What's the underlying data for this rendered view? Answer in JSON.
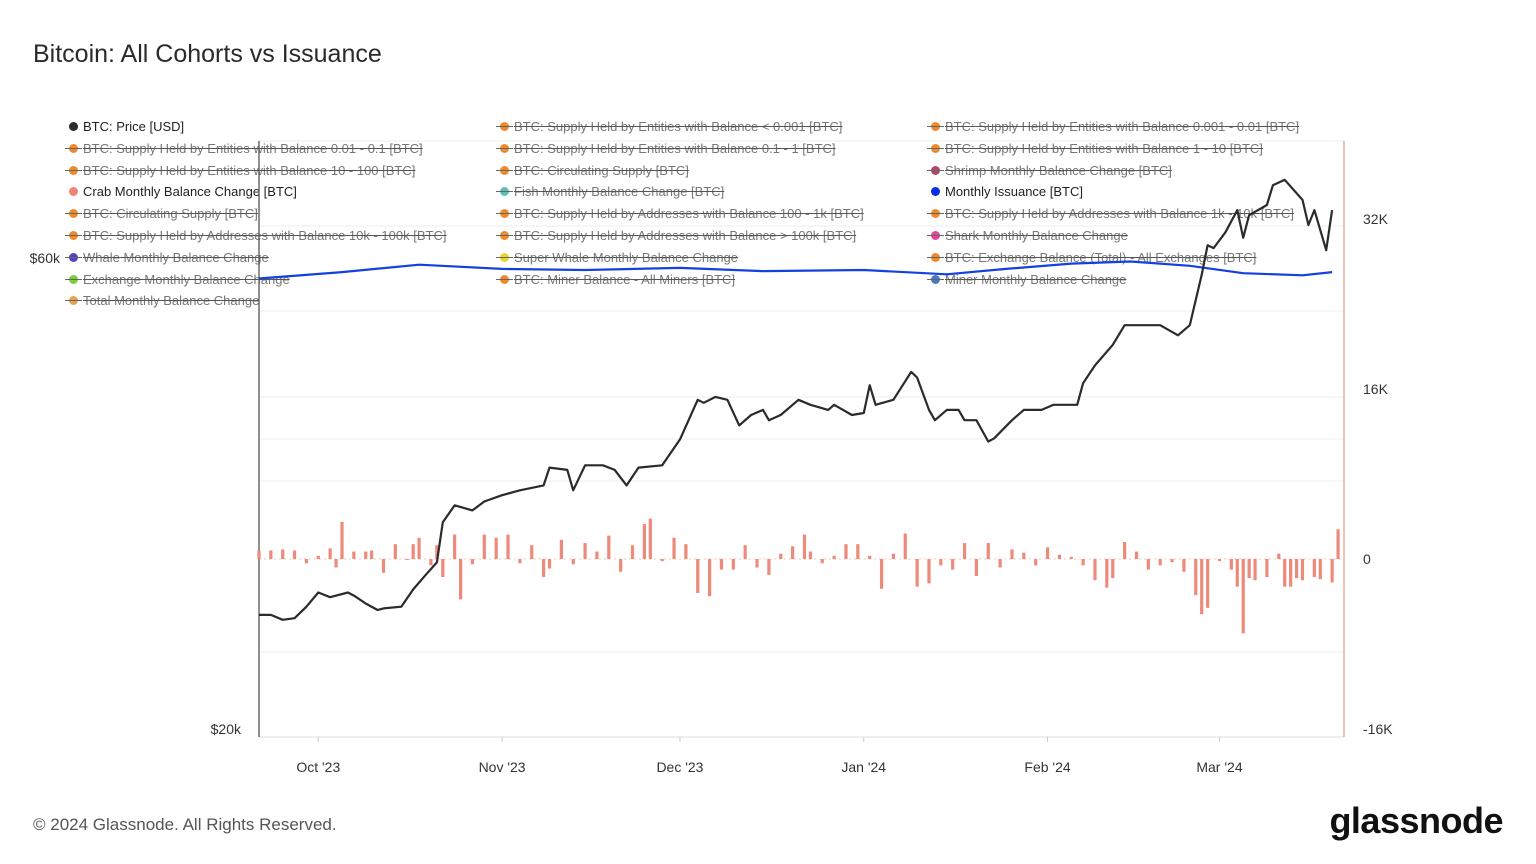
{
  "title": "Bitcoin: All Cohorts vs Issuance",
  "footer": "© 2024 Glassnode. All Rights Reserved.",
  "logo": "glassnode",
  "legend": [
    {
      "label": "BTC: Price [USD]",
      "color": "#2b2b2b",
      "active": true
    },
    {
      "label": "BTC: Supply Held by Entities with Balance < 0.001 [BTC]",
      "color": "#ee8a2c",
      "active": false
    },
    {
      "label": "BTC: Supply Held by Entities with Balance 0.001 - 0.01 [BTC]",
      "color": "#ee8a2c",
      "active": false
    },
    {
      "label": "BTC: Supply Held by Entities with Balance 0.01 - 0.1 [BTC]",
      "color": "#ee8a2c",
      "active": false
    },
    {
      "label": "BTC: Supply Held by Entities with Balance 0.1 - 1 [BTC]",
      "color": "#ee8a2c",
      "active": false
    },
    {
      "label": "BTC: Supply Held by Entities with Balance 1 - 10 [BTC]",
      "color": "#ee8a2c",
      "active": false
    },
    {
      "label": "BTC: Supply Held by Entities with Balance 10 - 100 [BTC]",
      "color": "#ee8a2c",
      "active": false
    },
    {
      "label": "BTC: Circulating Supply [BTC]",
      "color": "#ee8a2c",
      "active": false
    },
    {
      "label": "Shrimp Monthly Balance Change [BTC]",
      "color": "#b0456e",
      "active": false
    },
    {
      "label": "Crab Monthly Balance Change [BTC]",
      "color": "#ee8577",
      "active": true
    },
    {
      "label": "Fish Monthly Balance Change [BTC]",
      "color": "#5fbfb6",
      "active": false
    },
    {
      "label": "Monthly Issuance [BTC]",
      "color": "#0a2ee8",
      "active": true
    },
    {
      "label": "BTC: Circulating Supply [BTC]",
      "color": "#ee8a2c",
      "active": false
    },
    {
      "label": "BTC: Supply Held by Addresses with Balance 100 - 1k [BTC]",
      "color": "#ee8a2c",
      "active": false
    },
    {
      "label": "BTC: Supply Held by Addresses with Balance 1k - 10k [BTC]",
      "color": "#ee8a2c",
      "active": false
    },
    {
      "label": "BTC: Supply Held by Addresses with Balance 10k - 100k [BTC]",
      "color": "#ee8a2c",
      "active": false
    },
    {
      "label": "BTC: Supply Held by Addresses with Balance > 100k [BTC]",
      "color": "#ee8a2c",
      "active": false
    },
    {
      "label": "Shark Monthly Balance Change",
      "color": "#e0459a",
      "active": false
    },
    {
      "label": "Whale Monthly Balance Change",
      "color": "#5a3fc4",
      "active": false
    },
    {
      "label": "Super Whale Monthly Balance Change",
      "color": "#e6d72a",
      "active": false
    },
    {
      "label": "BTC: Exchange Balance (Total) - All Exchanges [BTC]",
      "color": "#ee8a2c",
      "active": false
    },
    {
      "label": "Exchange Monthly Balance Change",
      "color": "#7ccf3a",
      "active": false
    },
    {
      "label": "BTC: Miner Balance - All Miners [BTC]",
      "color": "#ee8a2c",
      "active": false
    },
    {
      "label": "Miner Monthly Balance Change",
      "color": "#4a78c0",
      "active": false
    },
    {
      "label": "Total Monthly Balance Change",
      "color": "#e0a552",
      "active": false
    }
  ],
  "chart_data": {
    "type": "line+bar",
    "title": "Bitcoin: All Cohorts vs Issuance",
    "x_range": [
      "2023-09-21",
      "2024-03-22"
    ],
    "xticks": [
      {
        "date": "2023-10-01",
        "label": "Oct '23"
      },
      {
        "date": "2023-11-01",
        "label": "Nov '23"
      },
      {
        "date": "2023-12-01",
        "label": "Dec '23"
      },
      {
        "date": "2024-01-01",
        "label": "Jan '24"
      },
      {
        "date": "2024-02-01",
        "label": "Feb '24"
      },
      {
        "date": "2024-03-01",
        "label": "Mar '24"
      }
    ],
    "left_axis": {
      "scale": "log",
      "range_usd": [
        20000,
        60000
      ],
      "ticks": [
        {
          "value": 60000,
          "label": "$60k"
        },
        {
          "value": 20000,
          "label": "$20k"
        }
      ]
    },
    "right_axis": {
      "scale": "linear",
      "range_kbtc": [
        -16,
        32
      ],
      "ticks": [
        {
          "value": 32,
          "label": "32K"
        },
        {
          "value": 16,
          "label": "16K"
        },
        {
          "value": 0,
          "label": "0"
        },
        {
          "value": -16,
          "label": "-16K"
        }
      ]
    },
    "grid": true,
    "colors": {
      "price": "#2b2b2b",
      "issuance": "#1440e0",
      "crab": "#ee8a7a",
      "right_axis": "#e8a08c"
    },
    "price_usd_k": [
      [
        "2023-09-21",
        26.1
      ],
      [
        "2023-09-23",
        26.1
      ],
      [
        "2023-09-25",
        25.8
      ],
      [
        "2023-09-27",
        25.9
      ],
      [
        "2023-09-29",
        26.6
      ],
      [
        "2023-10-01",
        27.5
      ],
      [
        "2023-10-03",
        27.2
      ],
      [
        "2023-10-06",
        27.5
      ],
      [
        "2023-10-07",
        27.3
      ],
      [
        "2023-10-09",
        26.8
      ],
      [
        "2023-10-11",
        26.4
      ],
      [
        "2023-10-12",
        26.5
      ],
      [
        "2023-10-15",
        26.6
      ],
      [
        "2023-10-17",
        27.7
      ],
      [
        "2023-10-19",
        28.6
      ],
      [
        "2023-10-21",
        29.5
      ],
      [
        "2023-10-22",
        32.4
      ],
      [
        "2023-10-24",
        33.7
      ],
      [
        "2023-10-27",
        33.3
      ],
      [
        "2023-10-29",
        34.0
      ],
      [
        "2023-11-01",
        34.5
      ],
      [
        "2023-11-04",
        34.9
      ],
      [
        "2023-11-08",
        35.3
      ],
      [
        "2023-11-09",
        36.8
      ],
      [
        "2023-11-12",
        36.6
      ],
      [
        "2023-11-13",
        34.9
      ],
      [
        "2023-11-15",
        37.0
      ],
      [
        "2023-11-18",
        37.0
      ],
      [
        "2023-11-20",
        36.6
      ],
      [
        "2023-11-22",
        35.3
      ],
      [
        "2023-11-24",
        36.8
      ],
      [
        "2023-11-28",
        37.0
      ],
      [
        "2023-12-01",
        39.3
      ],
      [
        "2023-12-04",
        43.1
      ],
      [
        "2023-12-05",
        42.8
      ],
      [
        "2023-12-07",
        43.4
      ],
      [
        "2023-12-09",
        43.1
      ],
      [
        "2023-12-11",
        40.6
      ],
      [
        "2023-12-13",
        41.6
      ],
      [
        "2023-12-15",
        42.1
      ],
      [
        "2023-12-16",
        41.1
      ],
      [
        "2023-12-18",
        41.6
      ],
      [
        "2023-12-21",
        43.1
      ],
      [
        "2023-12-23",
        42.6
      ],
      [
        "2023-12-26",
        42.1
      ],
      [
        "2023-12-27",
        42.6
      ],
      [
        "2023-12-30",
        41.6
      ],
      [
        "2024-01-01",
        41.8
      ],
      [
        "2024-01-02",
        44.6
      ],
      [
        "2024-01-03",
        42.6
      ],
      [
        "2024-01-06",
        43.1
      ],
      [
        "2024-01-09",
        46.0
      ],
      [
        "2024-01-10",
        45.4
      ],
      [
        "2024-01-12",
        42.1
      ],
      [
        "2024-01-13",
        41.1
      ],
      [
        "2024-01-15",
        42.1
      ],
      [
        "2024-01-17",
        42.1
      ],
      [
        "2024-01-18",
        41.1
      ],
      [
        "2024-01-20",
        41.1
      ],
      [
        "2024-01-22",
        39.1
      ],
      [
        "2024-01-23",
        39.4
      ],
      [
        "2024-01-26",
        41.1
      ],
      [
        "2024-01-28",
        42.1
      ],
      [
        "2024-01-31",
        42.1
      ],
      [
        "2024-02-02",
        42.6
      ],
      [
        "2024-02-06",
        42.6
      ],
      [
        "2024-02-07",
        44.8
      ],
      [
        "2024-02-09",
        46.7
      ],
      [
        "2024-02-12",
        49.0
      ],
      [
        "2024-02-14",
        51.3
      ],
      [
        "2024-02-17",
        51.3
      ],
      [
        "2024-02-20",
        51.3
      ],
      [
        "2024-02-23",
        50.1
      ],
      [
        "2024-02-25",
        51.3
      ],
      [
        "2024-02-27",
        57.7
      ],
      [
        "2024-02-28",
        61.8
      ],
      [
        "2024-02-29",
        61.4
      ],
      [
        "2024-03-02",
        63.7
      ],
      [
        "2024-03-04",
        67.1
      ],
      [
        "2024-03-05",
        62.9
      ],
      [
        "2024-03-06",
        66.3
      ],
      [
        "2024-03-09",
        67.9
      ],
      [
        "2024-03-10",
        71.1
      ],
      [
        "2024-03-12",
        72.0
      ],
      [
        "2024-03-15",
        68.7
      ],
      [
        "2024-03-16",
        64.8
      ],
      [
        "2024-03-17",
        67.1
      ],
      [
        "2024-03-19",
        61.1
      ],
      [
        "2024-03-20",
        67.1
      ]
    ],
    "monthly_issuance_kbtc": [
      [
        "2023-09-21",
        26.4
      ],
      [
        "2023-10-05",
        27.0
      ],
      [
        "2023-10-18",
        27.7
      ],
      [
        "2023-11-01",
        27.3
      ],
      [
        "2023-11-15",
        27.2
      ],
      [
        "2023-12-01",
        27.4
      ],
      [
        "2023-12-15",
        27.1
      ],
      [
        "2024-01-01",
        27.2
      ],
      [
        "2024-01-15",
        26.8
      ],
      [
        "2024-01-25",
        27.3
      ],
      [
        "2024-02-05",
        27.8
      ],
      [
        "2024-02-15",
        28.0
      ],
      [
        "2024-02-25",
        27.6
      ],
      [
        "2024-03-05",
        26.9
      ],
      [
        "2024-03-15",
        26.7
      ],
      [
        "2024-03-20",
        27.0
      ]
    ],
    "crab_monthly_balance_change_kbtc": [
      [
        "2023-09-21",
        0.8
      ],
      [
        "2023-09-23",
        0.8
      ],
      [
        "2023-09-25",
        0.9
      ],
      [
        "2023-09-27",
        0.8
      ],
      [
        "2023-09-29",
        -0.4
      ],
      [
        "2023-10-01",
        0.3
      ],
      [
        "2023-10-03",
        1.0
      ],
      [
        "2023-10-04",
        -0.8
      ],
      [
        "2023-10-05",
        3.5
      ],
      [
        "2023-10-07",
        0.7
      ],
      [
        "2023-10-09",
        0.7
      ],
      [
        "2023-10-10",
        0.8
      ],
      [
        "2023-10-12",
        -1.3
      ],
      [
        "2023-10-14",
        1.4
      ],
      [
        "2023-10-16",
        -0.1
      ],
      [
        "2023-10-17",
        1.4
      ],
      [
        "2023-10-18",
        2.0
      ],
      [
        "2023-10-20",
        -0.6
      ],
      [
        "2023-10-21",
        1.3
      ],
      [
        "2023-10-22",
        -1.7
      ],
      [
        "2023-10-24",
        2.3
      ],
      [
        "2023-10-25",
        -3.8
      ],
      [
        "2023-10-27",
        -0.5
      ],
      [
        "2023-10-29",
        2.3
      ],
      [
        "2023-10-31",
        2.0
      ],
      [
        "2023-11-02",
        2.3
      ],
      [
        "2023-11-04",
        -0.4
      ],
      [
        "2023-11-06",
        1.3
      ],
      [
        "2023-11-08",
        -1.7
      ],
      [
        "2023-11-09",
        -0.9
      ],
      [
        "2023-11-11",
        1.8
      ],
      [
        "2023-11-13",
        -0.5
      ],
      [
        "2023-11-15",
        1.5
      ],
      [
        "2023-11-17",
        0.7
      ],
      [
        "2023-11-19",
        2.2
      ],
      [
        "2023-11-21",
        -1.2
      ],
      [
        "2023-11-23",
        1.3
      ],
      [
        "2023-11-25",
        3.3
      ],
      [
        "2023-11-26",
        3.8
      ],
      [
        "2023-11-28",
        -0.2
      ],
      [
        "2023-11-30",
        2.0
      ],
      [
        "2023-12-02",
        1.4
      ],
      [
        "2023-12-04",
        -3.2
      ],
      [
        "2023-12-06",
        -3.5
      ],
      [
        "2023-12-08",
        -1.0
      ],
      [
        "2023-12-10",
        -1.0
      ],
      [
        "2023-12-12",
        1.3
      ],
      [
        "2023-12-14",
        -0.8
      ],
      [
        "2023-12-16",
        -1.5
      ],
      [
        "2023-12-18",
        0.5
      ],
      [
        "2023-12-20",
        1.2
      ],
      [
        "2023-12-22",
        2.3
      ],
      [
        "2023-12-23",
        0.7
      ],
      [
        "2023-12-25",
        -0.4
      ],
      [
        "2023-12-27",
        0.3
      ],
      [
        "2023-12-29",
        1.4
      ],
      [
        "2023-12-31",
        1.4
      ],
      [
        "2024-01-02",
        0.3
      ],
      [
        "2024-01-04",
        -2.8
      ],
      [
        "2024-01-06",
        0.5
      ],
      [
        "2024-01-08",
        2.4
      ],
      [
        "2024-01-10",
        -2.6
      ],
      [
        "2024-01-12",
        -2.3
      ],
      [
        "2024-01-14",
        -0.6
      ],
      [
        "2024-01-16",
        -1.0
      ],
      [
        "2024-01-18",
        1.5
      ],
      [
        "2024-01-20",
        -1.6
      ],
      [
        "2024-01-22",
        1.5
      ],
      [
        "2024-01-24",
        -0.8
      ],
      [
        "2024-01-26",
        0.9
      ],
      [
        "2024-01-28",
        0.6
      ],
      [
        "2024-01-30",
        -0.6
      ],
      [
        "2024-02-01",
        1.1
      ],
      [
        "2024-02-03",
        0.4
      ],
      [
        "2024-02-05",
        0.2
      ],
      [
        "2024-02-07",
        -0.6
      ],
      [
        "2024-02-09",
        -2.0
      ],
      [
        "2024-02-11",
        -2.7
      ],
      [
        "2024-02-12",
        -1.8
      ],
      [
        "2024-02-14",
        1.6
      ],
      [
        "2024-02-16",
        0.7
      ],
      [
        "2024-02-18",
        -1.0
      ],
      [
        "2024-02-20",
        -0.6
      ],
      [
        "2024-02-22",
        -0.3
      ],
      [
        "2024-02-24",
        -1.2
      ],
      [
        "2024-02-26",
        -3.4
      ],
      [
        "2024-02-27",
        -5.2
      ],
      [
        "2024-02-28",
        -4.6
      ],
      [
        "2024-03-01",
        -0.2
      ],
      [
        "2024-03-03",
        -1.0
      ],
      [
        "2024-03-04",
        -2.6
      ],
      [
        "2024-03-05",
        -7.0
      ],
      [
        "2024-03-06",
        -1.8
      ],
      [
        "2024-03-07",
        -2.0
      ],
      [
        "2024-03-09",
        -1.7
      ],
      [
        "2024-03-11",
        0.5
      ],
      [
        "2024-03-12",
        -2.6
      ],
      [
        "2024-03-13",
        -2.6
      ],
      [
        "2024-03-14",
        -1.8
      ],
      [
        "2024-03-15",
        -2.0
      ],
      [
        "2024-03-17",
        -1.7
      ],
      [
        "2024-03-18",
        -1.9
      ],
      [
        "2024-03-20",
        -2.2
      ],
      [
        "2024-03-21",
        2.8
      ]
    ]
  }
}
